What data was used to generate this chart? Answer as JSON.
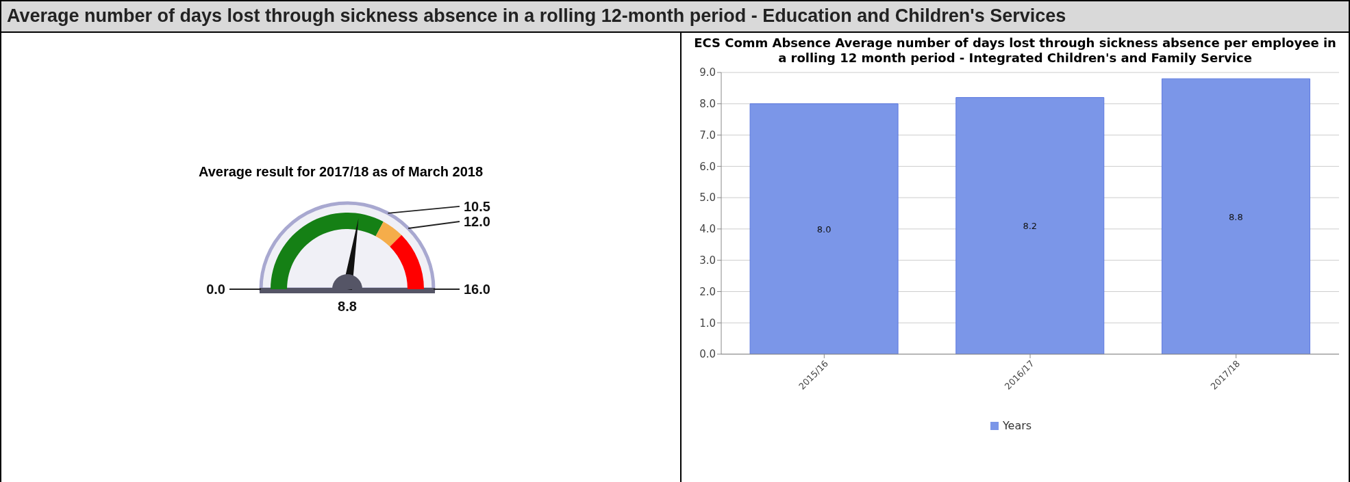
{
  "chart_data": [
    {
      "type": "other",
      "title": "Average number of days lost through sickness absence in a rolling 12-month period - Education and Children's Services",
      "subtitle": "Average result for 2017/18 as of March 2018",
      "annotations": [
        "0.0",
        "10.5",
        "12.0",
        "16.0"
      ],
      "values": [
        8.8
      ],
      "value_labels": [
        "8.8"
      ]
    },
    {
      "type": "bar",
      "title": "ECS Comm Absence Average number of days lost through sickness absence per employee in a rolling 12 month period - Integrated Children's and Family Service",
      "categories": [
        "2015/16",
        "2016/17",
        "2017/18"
      ],
      "series": [
        {
          "name": "Years",
          "color": "#7b96e8",
          "values": [
            8.0,
            8.2,
            8.8
          ],
          "value_labels": [
            "8.0",
            "8.2",
            "8.8"
          ]
        }
      ],
      "ylim": [
        0,
        9
      ],
      "yticks": [
        {
          "value": 0,
          "label": "0.0"
        },
        {
          "value": 1,
          "label": "1.0"
        },
        {
          "value": 2,
          "label": "2.0"
        },
        {
          "value": 3,
          "label": "3.0"
        },
        {
          "value": 4,
          "label": "4.0"
        },
        {
          "value": 5,
          "label": "5.0"
        },
        {
          "value": 6,
          "label": "6.0"
        },
        {
          "value": 7,
          "label": "7.0"
        },
        {
          "value": 8,
          "label": "8.0"
        },
        {
          "value": 9,
          "label": "9.0"
        }
      ],
      "grid": "y",
      "legend": "bottom"
    }
  ]
}
